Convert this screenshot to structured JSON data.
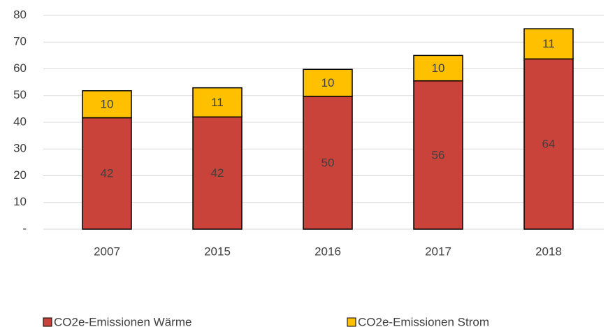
{
  "chart_data": {
    "type": "stacked_bar",
    "categories": [
      "2007",
      "2015",
      "2016",
      "2017",
      "2018"
    ],
    "series": [
      {
        "name": "CO2e-Emissionen Wärme",
        "color": "#c9433a",
        "values": [
          41.7,
          42,
          49.7,
          55.5,
          63.7
        ],
        "value_labels": [
          "42",
          "42",
          "50",
          "56",
          "64"
        ]
      },
      {
        "name": "CO2e-Emissionen Strom",
        "color": "#ffc000",
        "values": [
          10.1,
          10.9,
          10.1,
          9.5,
          11.3
        ],
        "value_labels": [
          "10",
          "11",
          "10",
          "10",
          "11"
        ]
      }
    ],
    "ylim": [
      0,
      80
    ],
    "yticks": [
      {
        "value": 0,
        "label": "-"
      },
      10,
      20,
      30,
      40,
      50,
      60,
      70,
      80
    ],
    "grid": true,
    "legend": "bottom"
  }
}
